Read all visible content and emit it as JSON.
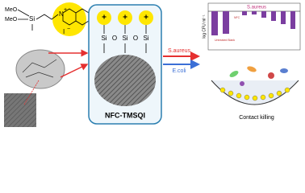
{
  "structure": {
    "methoxy_1": "MeO",
    "methoxy_2": "MeO",
    "silicon": "Si",
    "nitrogen": "N",
    "cation": "+",
    "iodide": "I",
    "anion": "−"
  },
  "center_box": {
    "label": "NFC-TMSQI",
    "charges": [
      "+",
      "+",
      "+"
    ],
    "silicons": [
      "Si",
      "Si",
      "Si"
    ],
    "oxygens": [
      "O",
      "O"
    ]
  },
  "arrows": {
    "upper": "S.aureus",
    "lower": "E.coli"
  },
  "result_panel": {
    "title": "S.aureus",
    "y_label": "log CFU ml⁻¹",
    "categories": [
      "Untreated Blank",
      "NFC"
    ],
    "caption": "Contact killing"
  }
}
